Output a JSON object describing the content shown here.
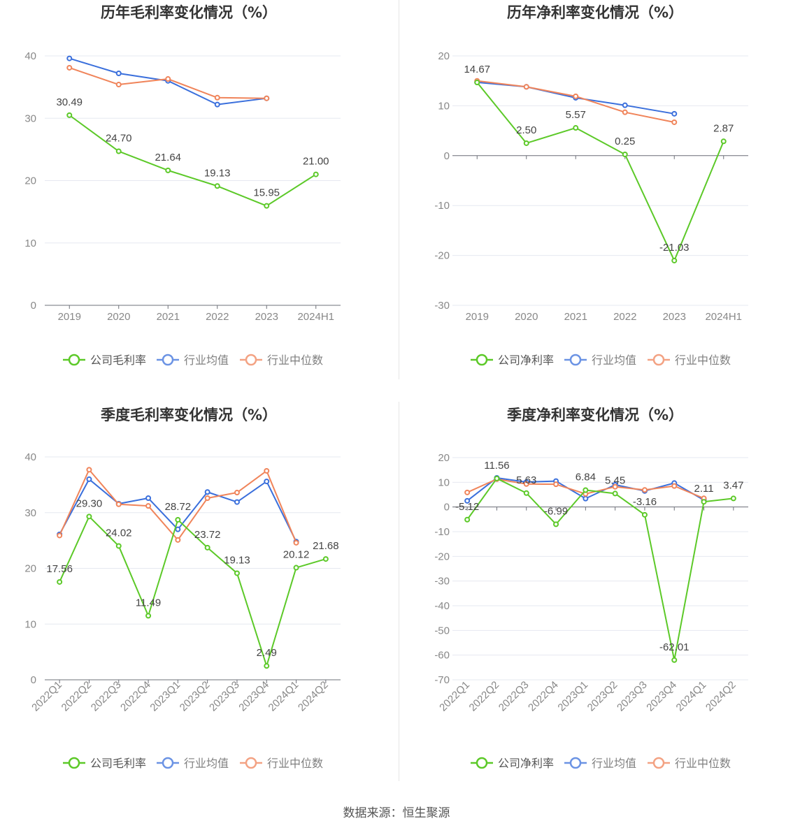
{
  "source": "数据来源：恒生聚源",
  "colors": {
    "company": "#5cc928",
    "industry_avg": "#3a6fdc",
    "industry_median": "#f0845a"
  },
  "chart_data": [
    {
      "id": "annual-gross",
      "type": "line",
      "title": "历年毛利率变化情况（%）",
      "categories": [
        "2019",
        "2020",
        "2021",
        "2022",
        "2023",
        "2024H1"
      ],
      "ylim": [
        0,
        40
      ],
      "yticks": [
        "0",
        "10",
        "20",
        "30",
        "40"
      ],
      "ytick_values": [
        0,
        10,
        20,
        30,
        40
      ],
      "legend": [
        "公司毛利率",
        "行业均值",
        "行业中位数"
      ],
      "series": [
        {
          "name": "公司毛利率",
          "values": [
            30.49,
            24.7,
            21.64,
            19.13,
            15.95,
            21.0
          ],
          "labels": [
            "30.49",
            "24.70",
            "21.64",
            "19.13",
            "15.95",
            "21.00"
          ]
        },
        {
          "name": "行业均值",
          "values": [
            39.6,
            37.2,
            36.0,
            32.2,
            33.2,
            null
          ]
        },
        {
          "name": "行业中位数",
          "values": [
            38.1,
            35.4,
            36.3,
            33.3,
            33.2,
            null
          ]
        }
      ]
    },
    {
      "id": "annual-net",
      "type": "line",
      "title": "历年净利率变化情况（%）",
      "categories": [
        "2019",
        "2020",
        "2021",
        "2022",
        "2023",
        "2024H1"
      ],
      "ylim": [
        -30,
        20
      ],
      "yticks": [
        "-30",
        "-20",
        "-10",
        "0",
        "10",
        "20"
      ],
      "ytick_values": [
        -30,
        -20,
        -10,
        0,
        10,
        20
      ],
      "legend": [
        "公司净利率",
        "行业均值",
        "行业中位数"
      ],
      "series": [
        {
          "name": "公司净利率",
          "values": [
            14.67,
            2.5,
            5.57,
            0.25,
            -21.03,
            2.87
          ],
          "labels": [
            "14.67",
            "2.50",
            "5.57",
            "0.25",
            "-21.03",
            "2.87"
          ]
        },
        {
          "name": "行业均值",
          "values": [
            14.7,
            13.8,
            11.6,
            10.1,
            8.4,
            null
          ]
        },
        {
          "name": "行业中位数",
          "values": [
            15.0,
            13.8,
            11.9,
            8.7,
            6.7,
            null
          ]
        }
      ]
    },
    {
      "id": "quarterly-gross",
      "type": "line",
      "title": "季度毛利率变化情况（%）",
      "categories": [
        "2022Q1",
        "2022Q2",
        "2022Q3",
        "2022Q4",
        "2023Q1",
        "2023Q2",
        "2023Q3",
        "2023Q4",
        "2024Q1",
        "2024Q2"
      ],
      "ylim": [
        0,
        40
      ],
      "yticks": [
        "0",
        "10",
        "20",
        "30",
        "40"
      ],
      "ytick_values": [
        0,
        10,
        20,
        30,
        40
      ],
      "legend": [
        "公司毛利率",
        "行业均值",
        "行业中位数"
      ],
      "series": [
        {
          "name": "公司毛利率",
          "values": [
            17.56,
            29.3,
            24.02,
            11.49,
            28.72,
            23.72,
            19.13,
            2.49,
            20.12,
            21.68
          ],
          "labels": [
            "17.56",
            "29.30",
            "24.02",
            "11.49",
            "28.72",
            "23.72",
            "19.13",
            "2.49",
            "20.12",
            "21.68"
          ]
        },
        {
          "name": "行业均值",
          "values": [
            26.1,
            36.0,
            31.6,
            32.6,
            27.0,
            33.7,
            31.9,
            35.6,
            24.8,
            null
          ]
        },
        {
          "name": "行业中位数",
          "values": [
            25.9,
            37.7,
            31.5,
            31.2,
            25.1,
            32.6,
            33.6,
            37.5,
            24.6,
            null
          ]
        }
      ]
    },
    {
      "id": "quarterly-net",
      "type": "line",
      "title": "季度净利率变化情况（%）",
      "categories": [
        "2022Q1",
        "2022Q2",
        "2022Q3",
        "2022Q4",
        "2023Q1",
        "2023Q2",
        "2023Q3",
        "2023Q4",
        "2024Q1",
        "2024Q2"
      ],
      "ylim": [
        -70,
        20
      ],
      "yticks": [
        "-70",
        "-60",
        "-50",
        "-40",
        "-30",
        "-20",
        "-10",
        "0",
        "10",
        "20"
      ],
      "ytick_values": [
        -70,
        -60,
        -50,
        -40,
        -30,
        -20,
        -10,
        0,
        10,
        20
      ],
      "legend": [
        "公司净利率",
        "行业均值",
        "行业中位数"
      ],
      "series": [
        {
          "name": "公司净利率",
          "values": [
            -5.12,
            11.56,
            5.63,
            -6.99,
            6.84,
            5.45,
            -3.16,
            -62.01,
            2.11,
            3.47
          ],
          "labels": [
            "-5.12",
            "11.56",
            "5.63",
            "-6.99",
            "6.84",
            "5.45",
            "-3.16",
            "-62.01",
            "2.11",
            "3.47"
          ]
        },
        {
          "name": "行业均值",
          "values": [
            2.5,
            11.8,
            10.1,
            10.5,
            3.4,
            9.0,
            6.5,
            9.7,
            2.8,
            null
          ]
        },
        {
          "name": "行业中位数",
          "values": [
            5.9,
            11.3,
            9.3,
            9.2,
            5.3,
            8.2,
            6.9,
            8.5,
            3.5,
            null
          ]
        }
      ]
    }
  ]
}
